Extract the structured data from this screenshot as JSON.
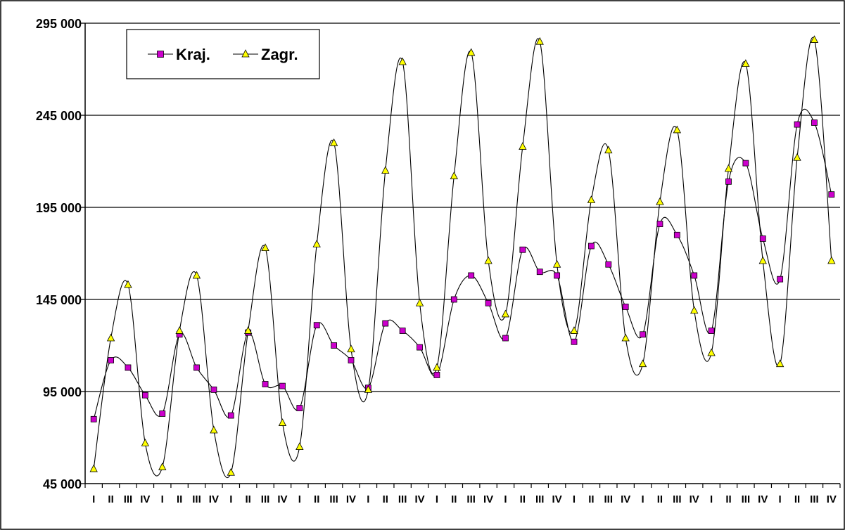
{
  "chart_data": {
    "type": "line",
    "title": "",
    "xlabel": "",
    "ylabel": "",
    "ylim": [
      45000,
      295000
    ],
    "yticks": [
      45000,
      95000,
      145000,
      195000,
      245000,
      295000
    ],
    "ytick_labels": [
      "45 000",
      "95 000",
      "145 000",
      "195 000",
      "245 000",
      "295 000"
    ],
    "grid": "horizontal",
    "legend_position": "top-left",
    "smooth": true,
    "categories": [
      "I",
      "II",
      "III",
      "IV",
      "I",
      "II",
      "III",
      "IV",
      "I",
      "II",
      "III",
      "IV",
      "I",
      "II",
      "III",
      "IV",
      "I",
      "II",
      "III",
      "IV",
      "I",
      "II",
      "III",
      "IV",
      "I",
      "II",
      "III",
      "IV",
      "I",
      "II",
      "III",
      "IV",
      "I",
      "II",
      "III",
      "IV",
      "I",
      "II",
      "III",
      "IV",
      "I",
      "II",
      "III",
      "IV"
    ],
    "series": [
      {
        "name": "Kraj.",
        "color": "#cc00cc",
        "marker": "square",
        "values": [
          80000,
          112000,
          108000,
          93000,
          83000,
          126000,
          108000,
          96000,
          82000,
          127000,
          99000,
          98000,
          86000,
          131000,
          120000,
          112000,
          97000,
          132000,
          128000,
          119000,
          104000,
          145000,
          158000,
          143000,
          124000,
          172000,
          160000,
          158000,
          122000,
          174000,
          164000,
          141000,
          126000,
          186000,
          180000,
          158000,
          128000,
          209000,
          219000,
          178000,
          156000,
          240000,
          241000,
          202000
        ]
      },
      {
        "name": "Zagr.",
        "color": "#ffff00",
        "marker": "triangle",
        "values": [
          53000,
          124000,
          153000,
          67000,
          54000,
          128000,
          158000,
          74000,
          51000,
          128000,
          173000,
          78000,
          65000,
          175000,
          230000,
          118000,
          96000,
          215000,
          274000,
          143000,
          108000,
          212000,
          279000,
          166000,
          137000,
          228000,
          285000,
          164000,
          128000,
          199000,
          226000,
          124000,
          110000,
          198000,
          237000,
          139000,
          116000,
          216000,
          273000,
          166000,
          110000,
          222000,
          286000,
          166000
        ]
      }
    ]
  }
}
